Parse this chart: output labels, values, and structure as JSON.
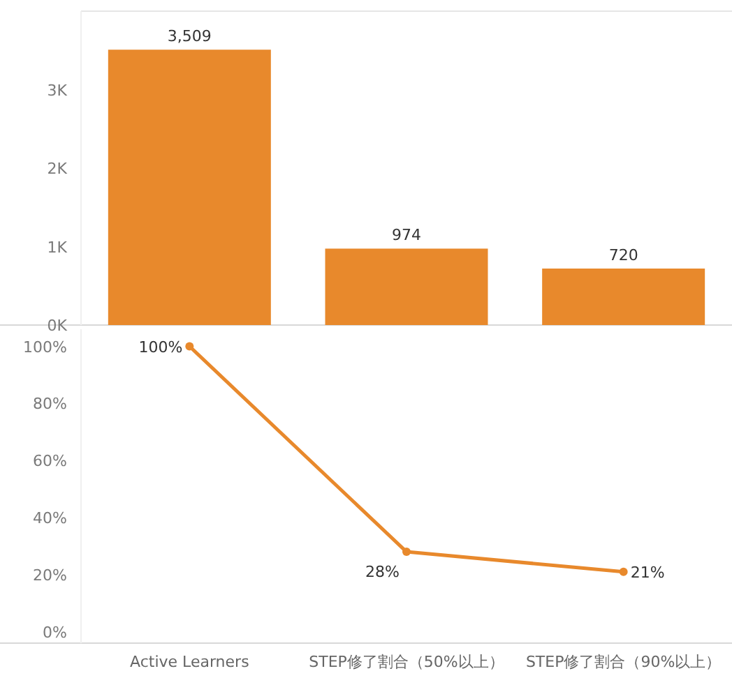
{
  "chart_data": [
    {
      "type": "bar",
      "categories": [
        null,
        null,
        null
      ],
      "values": [
        3509,
        974,
        720
      ],
      "value_labels": [
        "3,509",
        "974",
        "720"
      ],
      "color": "#e8892c",
      "ylim": [
        0,
        4000
      ],
      "yticks": [
        {
          "value": 0,
          "label": "0K"
        },
        {
          "value": 1000,
          "label": "1K"
        },
        {
          "value": 2000,
          "label": "2K"
        },
        {
          "value": 3000,
          "label": "3K"
        }
      ],
      "tick_labels": "y"
    },
    {
      "type": "line",
      "categories": [
        "Active Learners",
        "STEP修了割合（50%以上）",
        "STEP修了割合（90%以上）"
      ],
      "values": [
        100,
        28,
        21
      ],
      "value_labels": [
        "100%",
        "28%",
        "21%"
      ],
      "color": "#e8892c",
      "marker": "circle",
      "ylim": [
        -4,
        106
      ],
      "yticks": [
        {
          "value": 0,
          "label": "0%"
        },
        {
          "value": 20,
          "label": "20%"
        },
        {
          "value": 40,
          "label": "40%"
        },
        {
          "value": 60,
          "label": "60%"
        },
        {
          "value": 80,
          "label": "80%"
        },
        {
          "value": 100,
          "label": "100%"
        }
      ]
    }
  ]
}
